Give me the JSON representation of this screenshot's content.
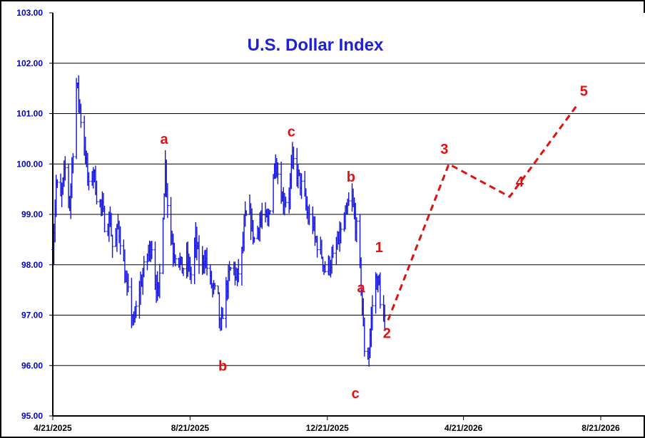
{
  "chart_data": {
    "type": "line",
    "title": "U.S. Dollar Index",
    "xlabel": "",
    "ylabel": "",
    "ylim": [
      95.0,
      103.0
    ],
    "y_ticks": [
      "103.00",
      "102.00",
      "101.00",
      "100.00",
      "99.00",
      "98.00",
      "97.00",
      "96.00",
      "95.00"
    ],
    "x_ticks": [
      "4/21/2025",
      "8/21/2025",
      "12/21/2025",
      "4/21/2026",
      "8/21/2026"
    ],
    "grid": "horizontal",
    "colors": {
      "price": "#1414e0",
      "projection": "#e31010",
      "title": "#1f1fd6",
      "ytick": "#0000cc"
    },
    "series": [
      {
        "type": "price-bars",
        "points": [
          [
            "2025-04-21",
            98.3
          ],
          [
            "2025-04-24",
            99.6
          ],
          [
            "2025-04-28",
            99.3
          ],
          [
            "2025-05-02",
            99.9
          ],
          [
            "2025-05-06",
            99.2
          ],
          [
            "2025-05-09",
            100.3
          ],
          [
            "2025-05-12",
            101.6
          ],
          [
            "2025-05-14",
            101.3
          ],
          [
            "2025-05-16",
            100.9
          ],
          [
            "2025-05-20",
            100.2
          ],
          [
            "2025-05-23",
            99.5
          ],
          [
            "2025-05-27",
            99.9
          ],
          [
            "2025-05-30",
            99.4
          ],
          [
            "2025-06-04",
            99.1
          ],
          [
            "2025-06-07",
            98.7
          ],
          [
            "2025-06-11",
            98.9
          ],
          [
            "2025-06-14",
            98.1
          ],
          [
            "2025-06-18",
            98.8
          ],
          [
            "2025-06-21",
            98.4
          ],
          [
            "2025-06-25",
            97.6
          ],
          [
            "2025-06-28",
            97.3
          ],
          [
            "2025-07-02",
            96.8
          ],
          [
            "2025-07-06",
            97.4
          ],
          [
            "2025-07-10",
            97.8
          ],
          [
            "2025-07-14",
            98.2
          ],
          [
            "2025-07-18",
            98.4
          ],
          [
            "2025-07-21",
            97.7
          ],
          [
            "2025-07-24",
            97.4
          ],
          [
            "2025-07-27",
            98.6
          ],
          [
            "2025-07-30",
            100.0
          ],
          [
            "2025-08-02",
            98.9
          ],
          [
            "2025-08-06",
            98.3
          ],
          [
            "2025-08-10",
            98.2
          ],
          [
            "2025-08-14",
            97.9
          ],
          [
            "2025-08-18",
            98.1
          ],
          [
            "2025-08-22",
            97.8
          ],
          [
            "2025-08-26",
            98.5
          ],
          [
            "2025-08-30",
            97.9
          ],
          [
            "2025-09-03",
            98.2
          ],
          [
            "2025-09-07",
            97.7
          ],
          [
            "2025-09-11",
            97.5
          ],
          [
            "2025-09-15",
            97.3
          ],
          [
            "2025-09-17",
            96.6
          ],
          [
            "2025-09-20",
            97.3
          ],
          [
            "2025-09-24",
            97.7
          ],
          [
            "2025-09-28",
            98.1
          ],
          [
            "2025-10-01",
            97.7
          ],
          [
            "2025-10-05",
            98.0
          ],
          [
            "2025-10-09",
            98.9
          ],
          [
            "2025-10-13",
            99.0
          ],
          [
            "2025-10-17",
            98.5
          ],
          [
            "2025-10-21",
            98.8
          ],
          [
            "2025-10-25",
            99.0
          ],
          [
            "2025-10-29",
            98.8
          ],
          [
            "2025-11-02",
            99.6
          ],
          [
            "2025-11-05",
            100.1
          ],
          [
            "2025-11-08",
            99.7
          ],
          [
            "2025-11-11",
            99.3
          ],
          [
            "2025-11-14",
            99.3
          ],
          [
            "2025-11-17",
            99.4
          ],
          [
            "2025-11-20",
            100.1
          ],
          [
            "2025-11-23",
            99.9
          ],
          [
            "2025-11-26",
            99.7
          ],
          [
            "2025-11-30",
            99.4
          ],
          [
            "2025-12-04",
            98.9
          ],
          [
            "2025-12-07",
            99.0
          ],
          [
            "2025-12-10",
            98.5
          ],
          [
            "2025-12-13",
            98.4
          ],
          [
            "2025-12-16",
            98.2
          ],
          [
            "2025-12-19",
            97.9
          ],
          [
            "2025-12-22",
            98.0
          ],
          [
            "2025-12-26",
            98.1
          ],
          [
            "2025-12-30",
            98.4
          ],
          [
            "2026-01-03",
            98.7
          ],
          [
            "2026-01-06",
            98.9
          ],
          [
            "2026-01-09",
            99.2
          ],
          [
            "2026-01-12",
            99.3
          ],
          [
            "2026-01-15",
            98.8
          ],
          [
            "2026-01-17",
            98.6
          ],
          [
            "2026-01-20",
            97.6
          ],
          [
            "2026-01-22",
            96.7
          ],
          [
            "2026-01-24",
            96.0
          ],
          [
            "2026-01-27",
            96.3
          ],
          [
            "2026-01-30",
            97.2
          ],
          [
            "2026-02-02",
            97.7
          ],
          [
            "2026-02-05",
            97.6
          ],
          [
            "2026-02-08",
            96.8
          ],
          [
            "2026-02-11",
            96.9
          ]
        ]
      },
      {
        "type": "projection",
        "style": "dashed",
        "points": [
          [
            "2026-02-13",
            96.9
          ],
          [
            "2026-04-08",
            100.0
          ],
          [
            "2026-06-01",
            99.35
          ],
          [
            "2026-08-01",
            101.2
          ]
        ]
      }
    ],
    "annotations": [
      {
        "text": "a",
        "x": "2025-07-29",
        "y": 100.4
      },
      {
        "text": "b",
        "x": "2025-09-19",
        "y": 95.9
      },
      {
        "text": "c",
        "x": "2025-11-19",
        "y": 100.55
      },
      {
        "text": "a",
        "x": "2026-01-20",
        "y": 97.45
      },
      {
        "text": "b",
        "x": "2026-01-11",
        "y": 99.65
      },
      {
        "text": "c",
        "x": "2026-01-15",
        "y": 95.35
      },
      {
        "text": "1",
        "x": "2026-02-05",
        "y": 98.25
      },
      {
        "text": "2",
        "x": "2026-02-12",
        "y": 96.55
      },
      {
        "text": "3",
        "x": "2026-04-04",
        "y": 100.2
      },
      {
        "text": "4",
        "x": "2026-06-10",
        "y": 99.55
      },
      {
        "text": "5",
        "x": "2026-08-06",
        "y": 101.35
      }
    ]
  }
}
